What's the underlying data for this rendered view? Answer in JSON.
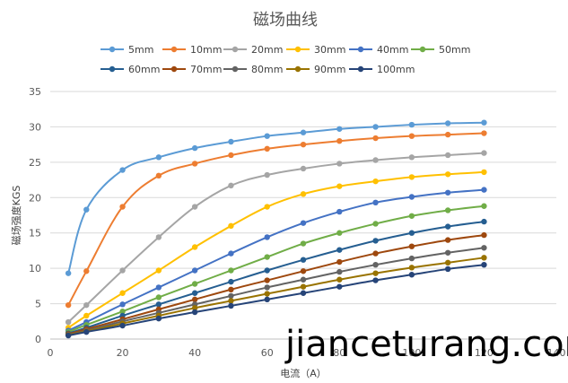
{
  "chart_data": {
    "type": "line",
    "title": "磁场曲线",
    "xlabel": "电流（A）",
    "ylabel": "磁场强度KGS",
    "xlim": [
      0,
      140
    ],
    "ylim": [
      0,
      35
    ],
    "xticks": [
      0,
      20,
      40,
      60,
      80,
      100,
      120,
      140
    ],
    "yticks": [
      0,
      5,
      10,
      15,
      20,
      25,
      30,
      35
    ],
    "grid": "horizontal",
    "legend": "top",
    "x": [
      5,
      10,
      20,
      30,
      40,
      50,
      60,
      70,
      80,
      90,
      100,
      110,
      120
    ],
    "series": [
      {
        "name": "5mm",
        "color": "#5B9BD5",
        "values": [
          9.3,
          18.3,
          23.9,
          25.7,
          27.0,
          27.9,
          28.7,
          29.2,
          29.7,
          30.0,
          30.3,
          30.5,
          30.6
        ]
      },
      {
        "name": "10mm",
        "color": "#ED7D31",
        "values": [
          4.8,
          9.6,
          18.7,
          23.1,
          24.8,
          26.0,
          26.9,
          27.5,
          28.0,
          28.4,
          28.7,
          28.9,
          29.1
        ]
      },
      {
        "name": "20mm",
        "color": "#A5A5A5",
        "values": [
          2.4,
          4.8,
          9.7,
          14.4,
          18.7,
          21.7,
          23.2,
          24.1,
          24.8,
          25.3,
          25.7,
          26.0,
          26.3
        ]
      },
      {
        "name": "30mm",
        "color": "#FFC000",
        "values": [
          1.6,
          3.3,
          6.5,
          9.7,
          13.0,
          16.0,
          18.7,
          20.5,
          21.6,
          22.3,
          22.9,
          23.3,
          23.6
        ]
      },
      {
        "name": "40mm",
        "color": "#4472C4",
        "values": [
          1.2,
          2.4,
          4.9,
          7.3,
          9.7,
          12.1,
          14.4,
          16.4,
          18.0,
          19.3,
          20.1,
          20.7,
          21.1
        ]
      },
      {
        "name": "50mm",
        "color": "#70AD47",
        "values": [
          1.0,
          2.0,
          3.9,
          5.9,
          7.8,
          9.7,
          11.6,
          13.5,
          15.0,
          16.3,
          17.4,
          18.2,
          18.8
        ]
      },
      {
        "name": "60mm",
        "color": "#255E91",
        "values": [
          0.8,
          1.6,
          3.3,
          4.9,
          6.5,
          8.1,
          9.7,
          11.2,
          12.6,
          13.9,
          15.0,
          15.9,
          16.6
        ]
      },
      {
        "name": "70mm",
        "color": "#9E480E",
        "values": [
          0.7,
          1.4,
          2.8,
          4.2,
          5.6,
          7.0,
          8.3,
          9.6,
          10.9,
          12.1,
          13.1,
          14.0,
          14.7
        ]
      },
      {
        "name": "80mm",
        "color": "#636363",
        "values": [
          0.6,
          1.2,
          2.5,
          3.7,
          4.9,
          6.1,
          7.3,
          8.4,
          9.5,
          10.5,
          11.4,
          12.2,
          12.9
        ]
      },
      {
        "name": "90mm",
        "color": "#997300",
        "values": [
          0.55,
          1.1,
          2.2,
          3.3,
          4.4,
          5.4,
          6.4,
          7.4,
          8.4,
          9.3,
          10.1,
          10.8,
          11.5
        ]
      },
      {
        "name": "100mm",
        "color": "#264478",
        "values": [
          0.5,
          1.0,
          1.9,
          2.9,
          3.8,
          4.7,
          5.6,
          6.5,
          7.4,
          8.3,
          9.1,
          9.9,
          10.5
        ]
      }
    ]
  },
  "watermark": "jianceturang.com"
}
